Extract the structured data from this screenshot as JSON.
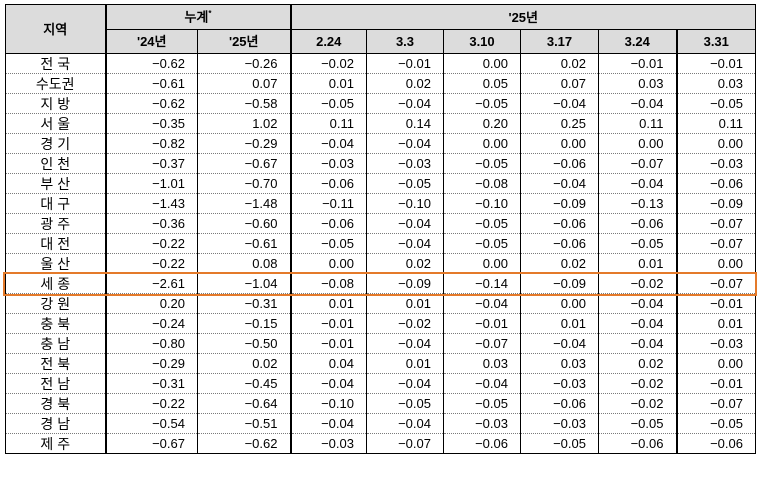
{
  "header": {
    "region": "지역",
    "cumulative": "누계",
    "cumulative_mark": "*",
    "year_group": "'25년",
    "cum_cols": [
      "'24년",
      "'25년"
    ],
    "week_cols": [
      "2.24",
      "3.3",
      "3.10",
      "3.17",
      "3.24",
      "3.31"
    ]
  },
  "highlight_color": "#e47a2a",
  "highlighted_row": "세 종",
  "rows": [
    {
      "region": "전 국",
      "values": [
        "-0.62",
        "-0.26",
        "-0.02",
        "-0.01",
        "0.00",
        "0.02",
        "-0.01",
        "-0.01"
      ]
    },
    {
      "region": "수도권",
      "values": [
        "-0.61",
        "0.07",
        "0.01",
        "0.02",
        "0.05",
        "0.07",
        "0.03",
        "0.03"
      ]
    },
    {
      "region": "지 방",
      "values": [
        "-0.62",
        "-0.58",
        "-0.05",
        "-0.04",
        "-0.05",
        "-0.04",
        "-0.04",
        "-0.05"
      ]
    },
    {
      "region": "서 울",
      "values": [
        "-0.35",
        "1.02",
        "0.11",
        "0.14",
        "0.20",
        "0.25",
        "0.11",
        "0.11"
      ]
    },
    {
      "region": "경 기",
      "values": [
        "-0.82",
        "-0.29",
        "-0.04",
        "-0.04",
        "0.00",
        "0.00",
        "0.00",
        "0.00"
      ]
    },
    {
      "region": "인 천",
      "values": [
        "-0.37",
        "-0.67",
        "-0.03",
        "-0.03",
        "-0.05",
        "-0.06",
        "-0.07",
        "-0.03"
      ]
    },
    {
      "region": "부 산",
      "values": [
        "-1.01",
        "-0.70",
        "-0.06",
        "-0.05",
        "-0.08",
        "-0.04",
        "-0.04",
        "-0.06"
      ]
    },
    {
      "region": "대 구",
      "values": [
        "-1.43",
        "-1.48",
        "-0.11",
        "-0.10",
        "-0.10",
        "-0.09",
        "-0.13",
        "-0.09"
      ]
    },
    {
      "region": "광 주",
      "values": [
        "-0.36",
        "-0.60",
        "-0.06",
        "-0.04",
        "-0.05",
        "-0.06",
        "-0.06",
        "-0.07"
      ]
    },
    {
      "region": "대 전",
      "values": [
        "-0.22",
        "-0.61",
        "-0.05",
        "-0.04",
        "-0.05",
        "-0.06",
        "-0.05",
        "-0.07"
      ]
    },
    {
      "region": "울 산",
      "values": [
        "-0.22",
        "0.08",
        "0.00",
        "0.02",
        "0.00",
        "0.02",
        "0.01",
        "0.00"
      ]
    },
    {
      "region": "세 종",
      "values": [
        "-2.61",
        "-1.04",
        "-0.08",
        "-0.09",
        "-0.14",
        "-0.09",
        "-0.02",
        "-0.07"
      ]
    },
    {
      "region": "강 원",
      "values": [
        "0.20",
        "-0.31",
        "0.01",
        "0.01",
        "-0.04",
        "0.00",
        "-0.04",
        "-0.01"
      ]
    },
    {
      "region": "충 북",
      "values": [
        "-0.24",
        "-0.15",
        "-0.01",
        "-0.02",
        "-0.01",
        "0.01",
        "-0.04",
        "0.01"
      ]
    },
    {
      "region": "충 남",
      "values": [
        "-0.80",
        "-0.50",
        "-0.01",
        "-0.04",
        "-0.07",
        "-0.04",
        "-0.04",
        "-0.03"
      ]
    },
    {
      "region": "전 북",
      "values": [
        "-0.29",
        "0.02",
        "0.04",
        "0.01",
        "0.03",
        "0.03",
        "0.02",
        "0.00"
      ]
    },
    {
      "region": "전 남",
      "values": [
        "-0.31",
        "-0.45",
        "-0.04",
        "-0.04",
        "-0.04",
        "-0.03",
        "-0.02",
        "-0.01"
      ]
    },
    {
      "region": "경 북",
      "values": [
        "-0.22",
        "-0.64",
        "-0.10",
        "-0.05",
        "-0.05",
        "-0.06",
        "-0.02",
        "-0.07"
      ]
    },
    {
      "region": "경 남",
      "values": [
        "-0.54",
        "-0.51",
        "-0.04",
        "-0.04",
        "-0.03",
        "-0.03",
        "-0.05",
        "-0.05"
      ]
    },
    {
      "region": "제 주",
      "values": [
        "-0.67",
        "-0.62",
        "-0.03",
        "-0.07",
        "-0.06",
        "-0.05",
        "-0.06",
        "-0.06"
      ]
    }
  ]
}
